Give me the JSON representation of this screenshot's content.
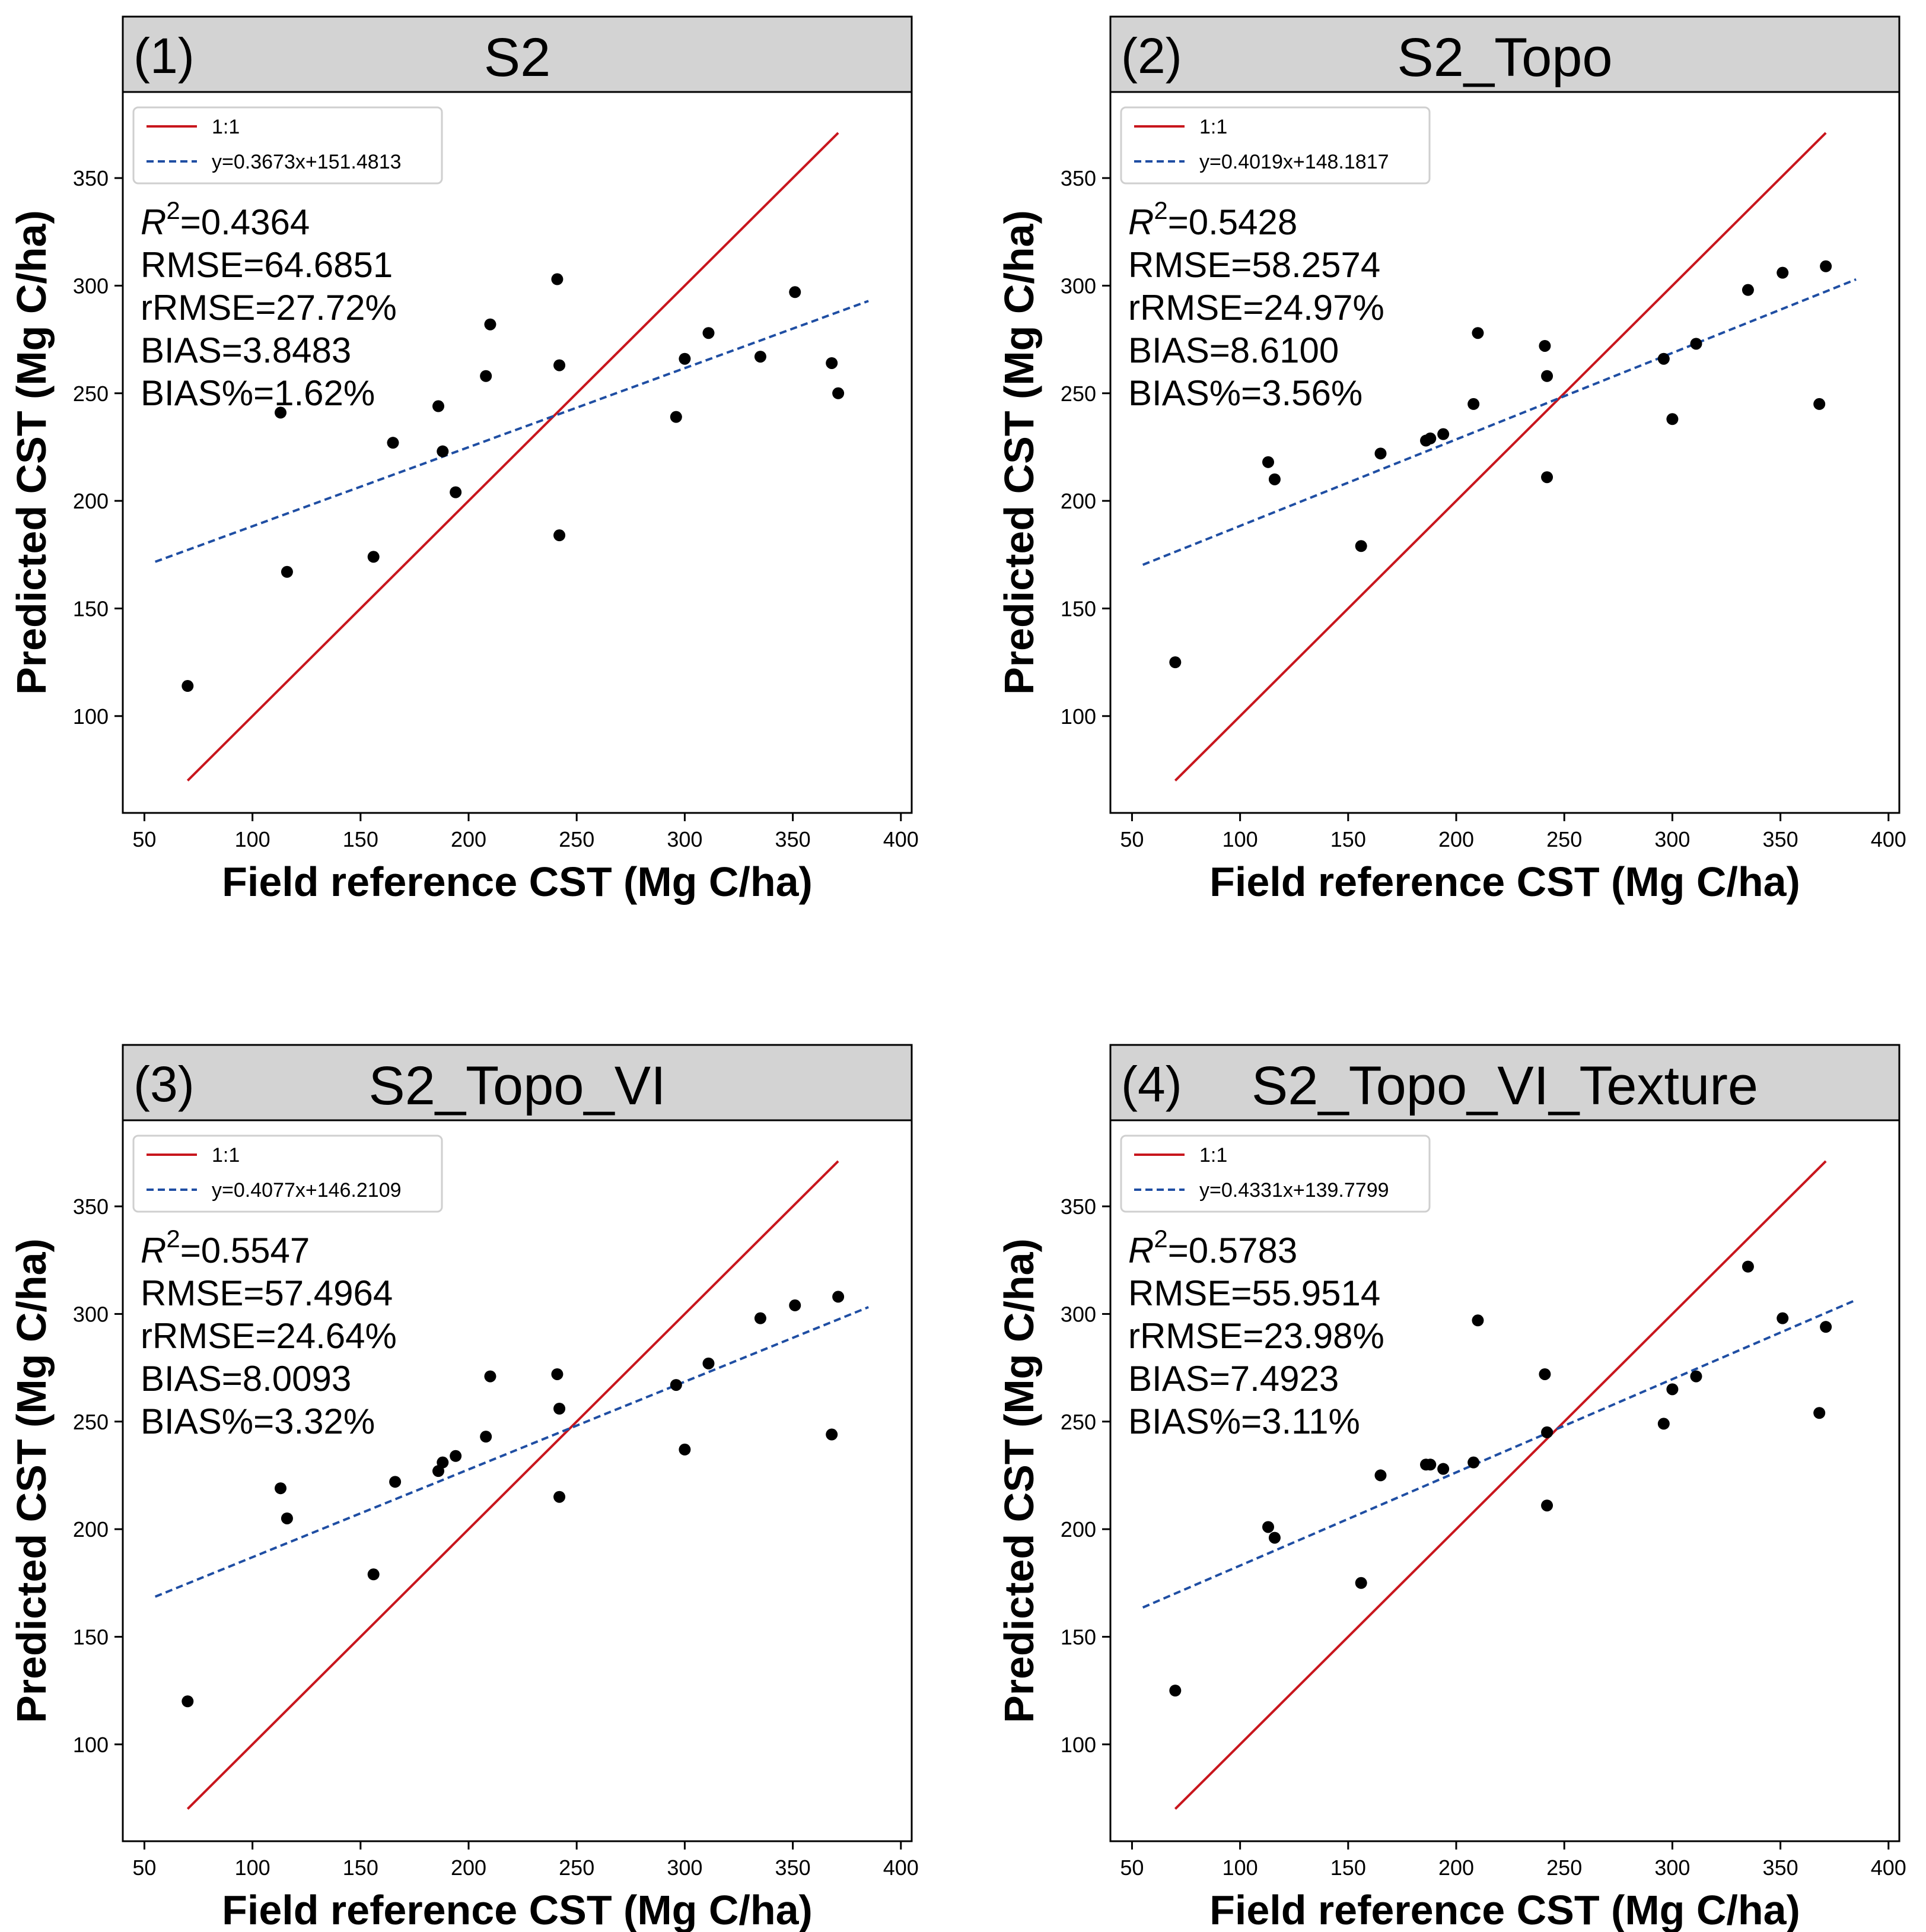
{
  "figure": {
    "colors": {
      "one_to_one": "#c8161d",
      "fit": "#1f4ea3",
      "points": "#000000",
      "title_bg": "#d3d3d3"
    }
  },
  "chart_data": [
    {
      "type": "scatter",
      "panel_label": "(1)",
      "title": "S2",
      "xlabel": "Field reference CST (Mg C/ha)",
      "ylabel": "Predicted CST (Mg C/ha)",
      "xlim": [
        40,
        405
      ],
      "ylim": [
        55,
        390
      ],
      "xticks": [
        50,
        100,
        150,
        200,
        250,
        300,
        350,
        400
      ],
      "yticks": [
        100,
        150,
        200,
        250,
        300,
        350
      ],
      "legend": {
        "placement": "top-left",
        "one_to_one": "1:1",
        "fit": "y=0.3673x+151.4813"
      },
      "one_to_one_line": {
        "x": [
          70,
          371
        ]
      },
      "fit_line": {
        "slope": 0.3673,
        "intercept": 151.4813,
        "x": [
          55,
          385
        ]
      },
      "stats": {
        "r2_label": "R",
        "r2_sup": "2",
        "r2_value": "=0.4364",
        "rmse": "RMSE=64.6851",
        "rrmse": "rRMSE=27.72%",
        "bias": "BIAS=3.8483",
        "bias_pct": "BIAS%=1.62%"
      },
      "points": [
        [
          70,
          114
        ],
        [
          113,
          241
        ],
        [
          116,
          167
        ],
        [
          156,
          174
        ],
        [
          165,
          227
        ],
        [
          186,
          244
        ],
        [
          188,
          223
        ],
        [
          194,
          204
        ],
        [
          208,
          258
        ],
        [
          210,
          282
        ],
        [
          241,
          303
        ],
        [
          242,
          184
        ],
        [
          242,
          263
        ],
        [
          296,
          239
        ],
        [
          300,
          266
        ],
        [
          311,
          278
        ],
        [
          335,
          267
        ],
        [
          351,
          297
        ],
        [
          368,
          264
        ],
        [
          371,
          250
        ]
      ]
    },
    {
      "type": "scatter",
      "panel_label": "(2)",
      "title": "S2_Topo",
      "xlabel": "Field reference CST (Mg C/ha)",
      "ylabel": "Predicted CST (Mg C/ha)",
      "xlim": [
        40,
        405
      ],
      "ylim": [
        55,
        390
      ],
      "xticks": [
        50,
        100,
        150,
        200,
        250,
        300,
        350,
        400
      ],
      "yticks": [
        100,
        150,
        200,
        250,
        300,
        350
      ],
      "legend": {
        "placement": "top-left",
        "one_to_one": "1:1",
        "fit": "y=0.4019x+148.1817"
      },
      "one_to_one_line": {
        "x": [
          70,
          371
        ]
      },
      "fit_line": {
        "slope": 0.4019,
        "intercept": 148.1817,
        "x": [
          55,
          385
        ]
      },
      "stats": {
        "r2_label": "R",
        "r2_sup": "2",
        "r2_value": "=0.5428",
        "rmse": "RMSE=58.2574",
        "rrmse": "rRMSE=24.97%",
        "bias": "BIAS=8.6100",
        "bias_pct": "BIAS%=3.56%"
      },
      "points": [
        [
          70,
          125
        ],
        [
          113,
          218
        ],
        [
          116,
          210
        ],
        [
          156,
          179
        ],
        [
          165,
          222
        ],
        [
          186,
          228
        ],
        [
          188,
          229
        ],
        [
          194,
          231
        ],
        [
          208,
          245
        ],
        [
          210,
          278
        ],
        [
          241,
          272
        ],
        [
          242,
          211
        ],
        [
          242,
          258
        ],
        [
          296,
          266
        ],
        [
          300,
          238
        ],
        [
          311,
          273
        ],
        [
          335,
          298
        ],
        [
          351,
          306
        ],
        [
          368,
          245
        ],
        [
          371,
          309
        ]
      ]
    },
    {
      "type": "scatter",
      "panel_label": "(3)",
      "title": "S2_Topo_VI",
      "xlabel": "Field reference CST (Mg C/ha)",
      "ylabel": "Predicted CST (Mg C/ha)",
      "xlim": [
        40,
        405
      ],
      "ylim": [
        55,
        390
      ],
      "xticks": [
        50,
        100,
        150,
        200,
        250,
        300,
        350,
        400
      ],
      "yticks": [
        100,
        150,
        200,
        250,
        300,
        350
      ],
      "legend": {
        "placement": "top-left",
        "one_to_one": "1:1",
        "fit": "y=0.4077x+146.2109"
      },
      "one_to_one_line": {
        "x": [
          70,
          371
        ]
      },
      "fit_line": {
        "slope": 0.4077,
        "intercept": 146.2109,
        "x": [
          55,
          385
        ]
      },
      "stats": {
        "r2_label": "R",
        "r2_sup": "2",
        "r2_value": "=0.5547",
        "rmse": "RMSE=57.4964",
        "rrmse": "rRMSE=24.64%",
        "bias": "BIAS=8.0093",
        "bias_pct": "BIAS%=3.32%"
      },
      "points": [
        [
          70,
          120
        ],
        [
          113,
          219
        ],
        [
          116,
          205
        ],
        [
          156,
          179
        ],
        [
          166,
          222
        ],
        [
          186,
          227
        ],
        [
          188,
          231
        ],
        [
          194,
          234
        ],
        [
          208,
          243
        ],
        [
          210,
          271
        ],
        [
          241,
          272
        ],
        [
          242,
          215
        ],
        [
          242,
          256
        ],
        [
          296,
          267
        ],
        [
          300,
          237
        ],
        [
          311,
          277
        ],
        [
          335,
          298
        ],
        [
          351,
          304
        ],
        [
          368,
          244
        ],
        [
          371,
          308
        ]
      ]
    },
    {
      "type": "scatter",
      "panel_label": "(4)",
      "title": "S2_Topo_VI_Texture",
      "xlabel": "Field reference CST (Mg C/ha)",
      "ylabel": "Predicted CST (Mg C/ha)",
      "xlim": [
        40,
        405
      ],
      "ylim": [
        55,
        390
      ],
      "xticks": [
        50,
        100,
        150,
        200,
        250,
        300,
        350,
        400
      ],
      "yticks": [
        100,
        150,
        200,
        250,
        300,
        350
      ],
      "legend": {
        "placement": "top-left",
        "one_to_one": "1:1",
        "fit": "y=0.4331x+139.7799"
      },
      "one_to_one_line": {
        "x": [
          70,
          371
        ]
      },
      "fit_line": {
        "slope": 0.4331,
        "intercept": 139.7799,
        "x": [
          55,
          385
        ]
      },
      "stats": {
        "r2_label": "R",
        "r2_sup": "2",
        "r2_value": "=0.5783",
        "rmse": "RMSE=55.9514",
        "rrmse": "rRMSE=23.98%",
        "bias": "BIAS=7.4923",
        "bias_pct": "BIAS%=3.11%"
      },
      "points": [
        [
          70,
          125
        ],
        [
          113,
          201
        ],
        [
          116,
          196
        ],
        [
          156,
          175
        ],
        [
          165,
          225
        ],
        [
          186,
          230
        ],
        [
          188,
          230
        ],
        [
          194,
          228
        ],
        [
          208,
          231
        ],
        [
          210,
          297
        ],
        [
          241,
          272
        ],
        [
          242,
          211
        ],
        [
          242,
          245
        ],
        [
          296,
          249
        ],
        [
          300,
          265
        ],
        [
          311,
          271
        ],
        [
          335,
          322
        ],
        [
          351,
          298
        ],
        [
          368,
          254
        ],
        [
          371,
          294
        ]
      ]
    }
  ]
}
